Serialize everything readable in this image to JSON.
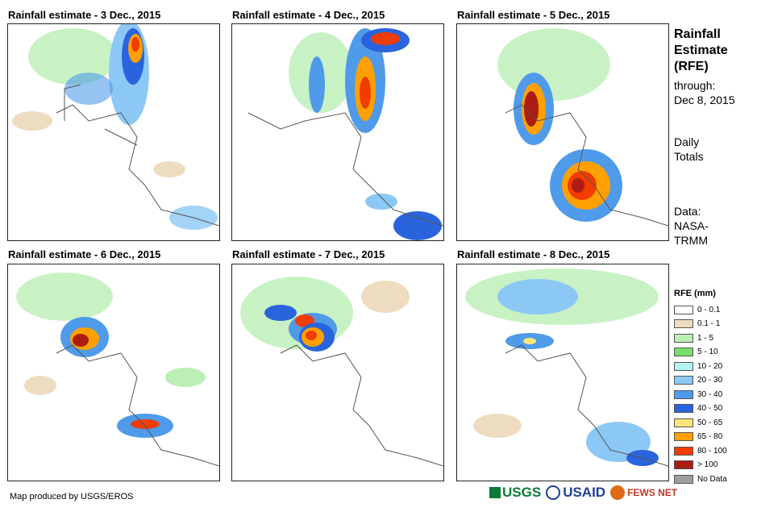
{
  "panels": [
    {
      "title": "Rainfall estimate - 3 Dec., 2015"
    },
    {
      "title": "Rainfall estimate - 4 Dec., 2015"
    },
    {
      "title": "Rainfall estimate - 5 Dec., 2015"
    },
    {
      "title": "Rainfall estimate - 6 Dec., 2015"
    },
    {
      "title": "Rainfall estimate - 7 Dec., 2015"
    },
    {
      "title": "Rainfall estimate - 8 Dec., 2015"
    }
  ],
  "sidebar": {
    "title_line1": "Rainfall",
    "title_line2": "Estimate",
    "title_line3": "(RFE)",
    "through_label": "through:",
    "through_date": "Dec 8, 2015",
    "totals_line1": "Daily",
    "totals_line2": "Totals",
    "data_line1": "Data:",
    "data_line2": "NASA-",
    "data_line3": "TRMM"
  },
  "legend": {
    "title": "RFE (mm)",
    "items": [
      {
        "label": "0 - 0.1",
        "color": "#ffffff"
      },
      {
        "label": "0.1 - 1",
        "color": "#eddcc0"
      },
      {
        "label": "1 - 5",
        "color": "#bcefb5"
      },
      {
        "label": "5 - 10",
        "color": "#78e06a"
      },
      {
        "label": "10 - 20",
        "color": "#b3f2f5"
      },
      {
        "label": "20 - 30",
        "color": "#8cc8f5"
      },
      {
        "label": "30 - 40",
        "color": "#4f9bea"
      },
      {
        "label": "40 - 50",
        "color": "#2a64dd"
      },
      {
        "label": "50 - 65",
        "color": "#ffe57a"
      },
      {
        "label": "65 - 80",
        "color": "#ffa000"
      },
      {
        "label": "80 - 100",
        "color": "#f23c00"
      },
      {
        "label": "> 100",
        "color": "#aa1c14"
      },
      {
        "label": "No Data",
        "color": "#9e9e9e"
      }
    ]
  },
  "footer": {
    "credit": "Map produced by USGS/EROS",
    "logo_usgs": "USGS",
    "logo_usaid": "USAID",
    "logo_fews": "FEWS NET"
  }
}
